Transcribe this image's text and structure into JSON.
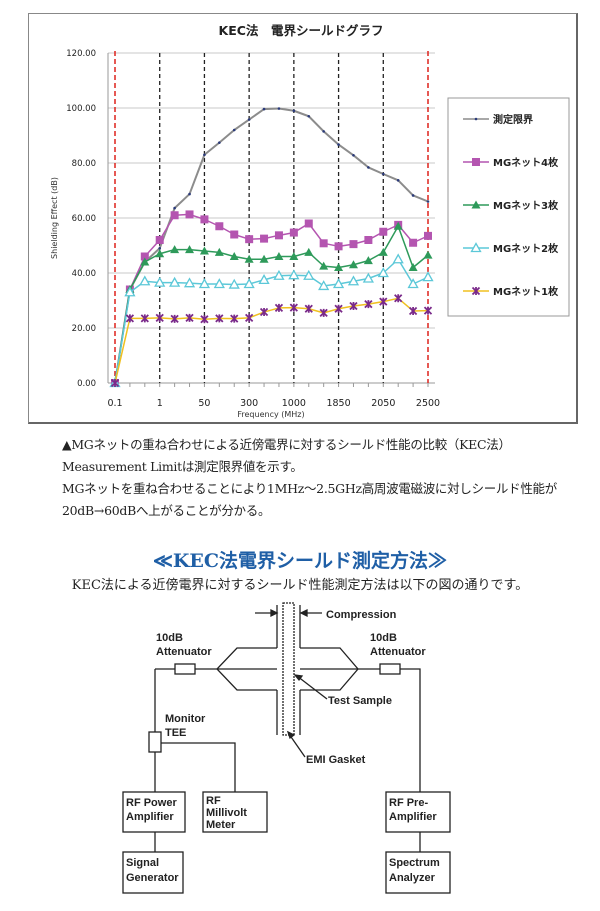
{
  "chart_data": {
    "type": "line",
    "title": "KEC法　電界シールドグラフ",
    "xlabel": "Frequency (MHz)",
    "ylabel": "Shielding Effect (dB)",
    "ylim": [
      0,
      120
    ],
    "yticks": [
      "0.00",
      "20.00",
      "40.00",
      "60.00",
      "80.00",
      "100.00",
      "120.00"
    ],
    "xtick_labels": [
      "0.1",
      "1",
      "50",
      "300",
      "1000",
      "1850",
      "2050",
      "2500"
    ],
    "xtick_positions": [
      0,
      3,
      6,
      9,
      12,
      15,
      18,
      21
    ],
    "point_count": 22,
    "grid": true,
    "legend_placement": "right",
    "reference_lines": {
      "black_dashed_at": [
        3,
        6,
        9,
        12,
        15,
        18
      ],
      "red_dashed_at": [
        0,
        21
      ]
    },
    "series": [
      {
        "name": "測定限界",
        "color": "#8c8c8c",
        "marker": "dot",
        "values": [
          0,
          34,
          44,
          49,
          63.6,
          68.7,
          83,
          87.4,
          92,
          95.8,
          99.6,
          99.8,
          99,
          97,
          91.5,
          86.7,
          82.8,
          78.4,
          76,
          73.7,
          68.2,
          66
        ]
      },
      {
        "name": "MGネット4枚",
        "color": "#b455b0",
        "marker": "square",
        "values": [
          0,
          34,
          46,
          52,
          61,
          61.3,
          59.5,
          57,
          54,
          52.3,
          52.5,
          53.7,
          54.7,
          58,
          50.8,
          49.7,
          50.5,
          52,
          55,
          57.5,
          51,
          53.5
        ]
      },
      {
        "name": "MGネット3枚",
        "color": "#2e9a5a",
        "marker": "triangle",
        "values": [
          0,
          34,
          44,
          47,
          48.5,
          48.5,
          48,
          47.5,
          46,
          45,
          45,
          46,
          46,
          47.5,
          42.5,
          42,
          43,
          44.5,
          47.5,
          57,
          42,
          46.5
        ]
      },
      {
        "name": "MGネット2枚",
        "color": "#5cc8d8",
        "marker": "triangle-open",
        "values": [
          0,
          33,
          37,
          36.5,
          36.5,
          36.3,
          36,
          36,
          35.8,
          36,
          37.5,
          39,
          39.2,
          39,
          35.3,
          36,
          37,
          38,
          40,
          45,
          36,
          38.5
        ]
      },
      {
        "name": "MGネット1枚",
        "color": "#f0c020",
        "marker": "x",
        "marker_color": "#7a2a8a",
        "values": [
          0,
          23.5,
          23.5,
          23.7,
          23.3,
          23.7,
          23.2,
          23.5,
          23.4,
          23.7,
          25.8,
          27.3,
          27.4,
          27,
          25.5,
          27,
          28,
          28.7,
          29.6,
          30.8,
          26.2,
          26.3
        ]
      }
    ]
  },
  "caption": {
    "line1": "▲MGネットの重ね合わせによる近傍電界に対するシールド性能の比較（KEC法）",
    "line2": "Measurement Limitは測定限界値を示す。",
    "line3": "MGネットを重ね合わせることにより1MHz～2.5GHz高周波電磁波に対しシールド性能が",
    "line4": "20dB→60dBへ上がることが分かる。"
  },
  "section": {
    "heading": "≪KEC法電界シールド測定方法≫",
    "subheading": "KEC法による近傍電界に対するシールド性能測定方法は以下の図の通りです。"
  },
  "diagram": {
    "compression": "Compression",
    "att_left_1": "10dB",
    "att_left_2": "Attenuator",
    "att_right_1": "10dB",
    "att_right_2": "Attenuator",
    "test_sample": "Test  Sample",
    "monitor_1": "Monitor",
    "monitor_2": "TEE",
    "emi_gasket": "EMI  Gasket",
    "rf_power_1": "RF  Power",
    "rf_power_2": "Amplifier",
    "rf_milli_1": "RF",
    "rf_milli_2": "Millivolt",
    "rf_milli_3": "Meter",
    "sig_gen_1": "Signal",
    "sig_gen_2": "Generator",
    "pre_amp_1": "RF  Pre-",
    "pre_amp_2": "Amplifier",
    "spec_1": "Spectrum",
    "spec_2": "Analyzer"
  }
}
